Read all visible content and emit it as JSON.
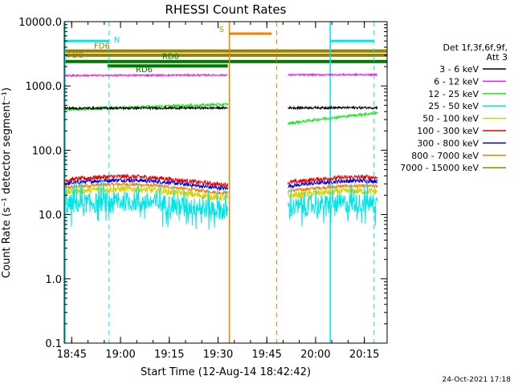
{
  "chart_data": {
    "type": "line",
    "title": "RHESSI Count Rates",
    "xlabel": "Start Time (12-Aug-14 18:42:42)",
    "ylabel": "Count Rate (s⁻¹ detector segment⁻¹)",
    "yscale": "log",
    "ylim": [
      0.1,
      10000
    ],
    "xlim": [
      "18:42:42",
      "20:22:00"
    ],
    "x_ticks": [
      "18:45",
      "19:00",
      "19:15",
      "19:30",
      "19:45",
      "20:00",
      "20:15"
    ],
    "y_ticks": [
      "10000.0",
      "1000.0",
      "100.0",
      "10.0",
      "1.0",
      "0.1"
    ],
    "grid": false,
    "legend": {
      "header": [
        "Det 1f,3f,6f,9f,",
        "Att 3"
      ],
      "placement": "right",
      "entries": [
        {
          "label": "3 - 6 keV",
          "color": "#000000"
        },
        {
          "label": "6 - 12 keV",
          "color": "#e61ee6"
        },
        {
          "label": "12 - 25 keV",
          "color": "#1ee61e"
        },
        {
          "label": "25 - 50 keV",
          "color": "#00e6e6"
        },
        {
          "label": "50 - 100 keV",
          "color": "#d2d200"
        },
        {
          "label": "100 - 300 keV",
          "color": "#e60000"
        },
        {
          "label": "300 - 800 keV",
          "color": "#0000e6"
        },
        {
          "label": "800 - 7000 keV",
          "color": "#f08000"
        },
        {
          "label": "7000 - 15000 keV",
          "color": "#968200"
        }
      ]
    },
    "gaps": [
      [
        "19:33:00",
        "19:46:00"
      ],
      [
        "19:47:00",
        "19:51:00"
      ]
    ],
    "series": [
      {
        "name": "3 - 6 keV",
        "color": "#000000",
        "values_start": 450,
        "values_end": 460,
        "noise": 0.04
      },
      {
        "name": "6 - 12 keV",
        "color": "#e61ee6",
        "values_start": 1450,
        "values_end": 1500,
        "noise": 0.03
      },
      {
        "name": "12 - 25 keV",
        "color": "#1ee61e",
        "values_start": 430,
        "values_end": 600,
        "after_gap_start": 260,
        "after_gap_end": 380,
        "noise": 0.05
      },
      {
        "name": "25 - 50 keV",
        "color": "#00e6e6",
        "values_start": 14,
        "values_end": 13,
        "noise": 0.35
      },
      {
        "name": "50 - 100 keV",
        "color": "#d2d200",
        "values_start": 22,
        "values_end": 20,
        "noise": 0.12
      },
      {
        "name": "100 - 300 keV",
        "color": "#e60000",
        "values_start": 34,
        "values_end": 33,
        "noise": 0.08
      },
      {
        "name": "300 - 800 keV",
        "color": "#0000e6",
        "values_start": 30,
        "values_end": 29,
        "noise": 0.07
      },
      {
        "name": "800 - 7000 keV",
        "color": "#f08000",
        "values_start": 26,
        "values_end": 24,
        "noise": 0.06
      }
    ],
    "annotations": {
      "night_markers": [
        {
          "label": "N",
          "color": "#00e6e6",
          "start": "18:42:42",
          "end": "18:56:30",
          "dashed_line": "18:56:30",
          "level": 5000
        },
        {
          "label": "",
          "color": "#00e6e6",
          "start": "20:04:30",
          "end": "20:18:00",
          "dashed_line": "20:18:00",
          "level": 5000,
          "solid_line": "20:04:30"
        }
      ],
      "saa_marker": {
        "label": "S",
        "color": "#f08000",
        "start": "19:33:30",
        "end": "19:48:00",
        "level": 6500
      },
      "attenuator_bars": [
        {
          "label": "FD6",
          "color": "#968200",
          "start": "18:42:42",
          "end": "20:22:00",
          "level": 3500
        },
        {
          "label": "FD8",
          "color": "#968200",
          "start": "18:42:42",
          "end": "20:22:00",
          "level": 3000
        },
        {
          "label": "RD0",
          "color": "#007800",
          "start": "18:42:42",
          "end": "20:22:00",
          "level": 2400
        },
        {
          "label": "RD6",
          "color": "#007800",
          "start": "18:56:00",
          "end": "19:33:00",
          "level": 2050
        }
      ]
    },
    "footer_date": "24-Oct-2021 17:18"
  }
}
